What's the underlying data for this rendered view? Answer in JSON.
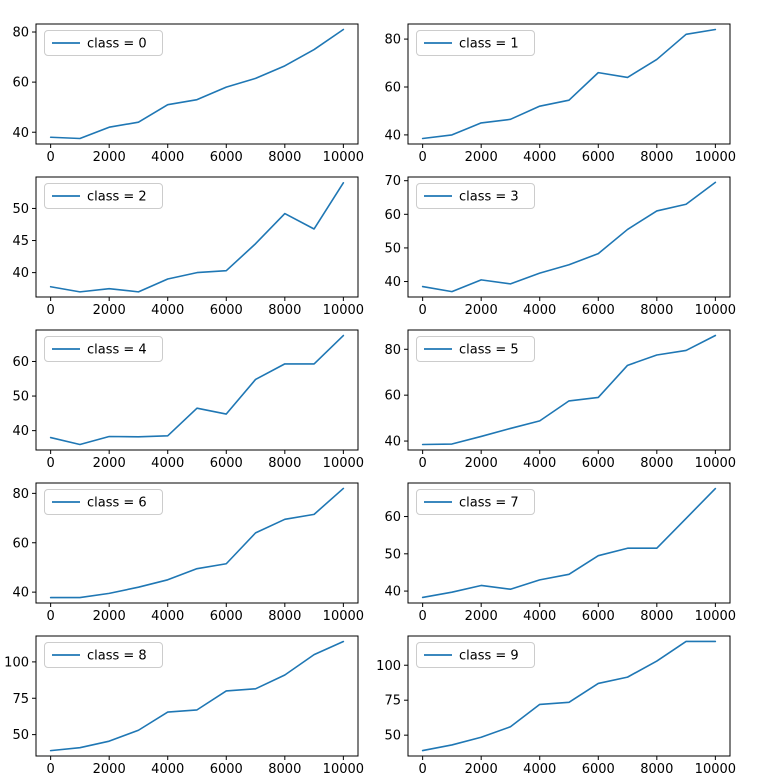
{
  "figure": {
    "background": "#ffffff",
    "rows": 5,
    "cols": 2,
    "line_color": "#1f77b4",
    "axes_color": "#000000",
    "legend_border_color": "#cccccc",
    "legend_background": "#ffffff"
  },
  "chart_data": [
    {
      "type": "line",
      "label": "class = 0",
      "legend_position": "upper left",
      "x": [
        0,
        1000,
        2000,
        3000,
        4000,
        5000,
        6000,
        7000,
        8000,
        9000,
        10000
      ],
      "values": [
        38,
        37.5,
        42,
        44,
        51,
        53,
        58,
        61.5,
        66.5,
        73,
        81
      ],
      "xticks": [
        0,
        2000,
        4000,
        6000,
        8000,
        10000
      ],
      "yticks": [
        40,
        60,
        80
      ],
      "xlim": [
        -500,
        10500
      ],
      "ylim": [
        35.3,
        83.2
      ]
    },
    {
      "type": "line",
      "label": "class = 1",
      "legend_position": "upper left",
      "x": [
        0,
        1000,
        2000,
        3000,
        4000,
        5000,
        6000,
        7000,
        8000,
        9000,
        10000
      ],
      "values": [
        38.5,
        40,
        45,
        46.5,
        52,
        54.5,
        66,
        64,
        71.5,
        82,
        84
      ],
      "xticks": [
        0,
        2000,
        4000,
        6000,
        8000,
        10000
      ],
      "yticks": [
        40,
        60,
        80
      ],
      "xlim": [
        -500,
        10500
      ],
      "ylim": [
        36.2,
        86.3
      ]
    },
    {
      "type": "line",
      "label": "class = 2",
      "legend_position": "upper left",
      "x": [
        0,
        1000,
        2000,
        3000,
        4000,
        5000,
        6000,
        7000,
        8000,
        9000,
        10000
      ],
      "values": [
        37.8,
        37,
        37.5,
        37,
        39,
        40,
        40.3,
        44.5,
        49.2,
        46.8,
        54
      ],
      "xticks": [
        0,
        2000,
        4000,
        6000,
        8000,
        10000
      ],
      "yticks": [
        40,
        45,
        50
      ],
      "xlim": [
        -500,
        10500
      ],
      "ylim": [
        36.2,
        54.9
      ]
    },
    {
      "type": "line",
      "label": "class = 3",
      "legend_position": "upper left",
      "x": [
        0,
        1000,
        2000,
        3000,
        4000,
        5000,
        6000,
        7000,
        8000,
        9000,
        10000
      ],
      "values": [
        38.5,
        37,
        40.5,
        39.3,
        42.5,
        45,
        48.3,
        55.5,
        61,
        63,
        69.5
      ],
      "xticks": [
        0,
        2000,
        4000,
        6000,
        8000,
        10000
      ],
      "yticks": [
        40,
        50,
        60,
        70
      ],
      "xlim": [
        -500,
        10500
      ],
      "ylim": [
        35.4,
        71.1
      ]
    },
    {
      "type": "line",
      "label": "class = 4",
      "legend_position": "upper left",
      "x": [
        0,
        1000,
        2000,
        3000,
        4000,
        5000,
        6000,
        7000,
        8000,
        9000,
        10000
      ],
      "values": [
        38,
        36,
        38.3,
        38.2,
        38.5,
        46.5,
        44.8,
        54.8,
        59.3,
        59.3,
        67.5
      ],
      "xticks": [
        0,
        2000,
        4000,
        6000,
        8000,
        10000
      ],
      "yticks": [
        40,
        50,
        60
      ],
      "xlim": [
        -500,
        10500
      ],
      "ylim": [
        34.4,
        69.1
      ]
    },
    {
      "type": "line",
      "label": "class = 5",
      "legend_position": "upper left",
      "x": [
        0,
        1000,
        2000,
        3000,
        4000,
        5000,
        6000,
        7000,
        8000,
        9000,
        10000
      ],
      "values": [
        38.5,
        38.7,
        42,
        45.5,
        48.8,
        57.5,
        59,
        73,
        77.5,
        79.5,
        86
      ],
      "xticks": [
        0,
        2000,
        4000,
        6000,
        8000,
        10000
      ],
      "yticks": [
        40,
        60,
        80
      ],
      "xlim": [
        -500,
        10500
      ],
      "ylim": [
        36.1,
        88.4
      ]
    },
    {
      "type": "line",
      "label": "class = 6",
      "legend_position": "upper left",
      "x": [
        0,
        1000,
        2000,
        3000,
        4000,
        5000,
        6000,
        7000,
        8000,
        9000,
        10000
      ],
      "values": [
        37.8,
        37.8,
        39.5,
        42,
        45,
        49.5,
        51.5,
        64,
        69.5,
        71.5,
        82
      ],
      "xticks": [
        0,
        2000,
        4000,
        6000,
        8000,
        10000
      ],
      "yticks": [
        40,
        60,
        80
      ],
      "xlim": [
        -500,
        10500
      ],
      "ylim": [
        35.6,
        84.2
      ]
    },
    {
      "type": "line",
      "label": "class = 7",
      "legend_position": "upper left",
      "x": [
        0,
        1000,
        2000,
        3000,
        4000,
        5000,
        6000,
        7000,
        8000,
        9000,
        10000
      ],
      "values": [
        38.3,
        39.7,
        41.5,
        40.5,
        43,
        44.5,
        49.5,
        51.5,
        51.5,
        59.5,
        67.5
      ],
      "xticks": [
        0,
        2000,
        4000,
        6000,
        8000,
        10000
      ],
      "yticks": [
        40,
        50,
        60
      ],
      "xlim": [
        -500,
        10500
      ],
      "ylim": [
        36.8,
        69.0
      ]
    },
    {
      "type": "line",
      "label": "class = 8",
      "legend_position": "upper left",
      "x": [
        0,
        1000,
        2000,
        3000,
        4000,
        5000,
        6000,
        7000,
        8000,
        9000,
        10000
      ],
      "values": [
        39,
        41,
        45.5,
        53,
        65.5,
        67,
        80,
        81.5,
        91,
        105,
        114
      ],
      "xticks": [
        0,
        2000,
        4000,
        6000,
        8000,
        10000
      ],
      "yticks": [
        50,
        75,
        100
      ],
      "xlim": [
        -500,
        10500
      ],
      "ylim": [
        35.3,
        117.8
      ]
    },
    {
      "type": "line",
      "label": "class = 9",
      "legend_position": "upper left",
      "x": [
        0,
        1000,
        2000,
        3000,
        4000,
        5000,
        6000,
        7000,
        8000,
        9000,
        10000
      ],
      "values": [
        39,
        43,
        48.5,
        56,
        72,
        73.5,
        87,
        91.5,
        103,
        117,
        117
      ],
      "xticks": [
        0,
        2000,
        4000,
        6000,
        8000,
        10000
      ],
      "yticks": [
        50,
        75,
        100
      ],
      "xlim": [
        -500,
        10500
      ],
      "ylim": [
        35.1,
        120.9
      ]
    }
  ]
}
